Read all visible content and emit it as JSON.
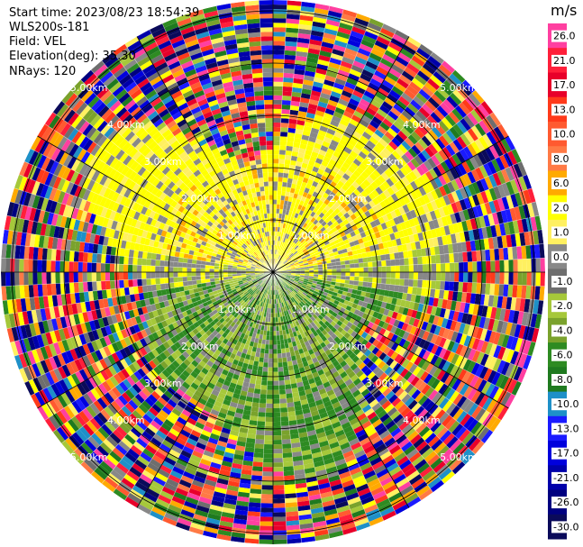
{
  "header": {
    "start_time": "Start time: 2023/08/23 18:54:39",
    "instrument": "WLS200s-181",
    "field": "Field: VEL",
    "elevation": "Elevation(deg): 35.30",
    "nrays": "NRays: 120"
  },
  "chart_data": {
    "type": "polar-heatmap",
    "field": "VEL",
    "units": "m/s",
    "nrays": 120,
    "elevation_deg": 35.3,
    "range_rings": [
      {
        "km": 1.0,
        "label": "1.00km"
      },
      {
        "km": 2.0,
        "label": "2.00km"
      },
      {
        "km": 3.0,
        "label": "3.00km"
      },
      {
        "km": 4.0,
        "label": "4.00km"
      },
      {
        "km": 5.0,
        "label": "5.00km"
      }
    ],
    "colorbar": {
      "label": "m/s",
      "ticks": [
        "26.0",
        "21.0",
        "17.0",
        "13.0",
        "10.0",
        "8.0",
        "6.0",
        "2.0",
        "1.0",
        "0.0",
        "-1.0",
        "-2.0",
        "-4.0",
        "-6.0",
        "-8.0",
        "-10.0",
        "-13.0",
        "-17.0",
        "-21.0",
        "-26.0",
        "-30.0"
      ],
      "colors": [
        "#ff3fa0",
        "#ff1f3a",
        "#e8002a",
        "#ff3a1a",
        "#ff5a30",
        "#ff7a45",
        "#ffaa00",
        "#ffff00",
        "#fff060",
        "#888888",
        "#6e6e6e",
        "#a6c83a",
        "#7aa22c",
        "#2e8b22",
        "#1f7a1f",
        "#1e90c8",
        "#1a1aff",
        "#0000dd",
        "#0000aa",
        "#000080",
        "#0a0a5a"
      ]
    }
  }
}
